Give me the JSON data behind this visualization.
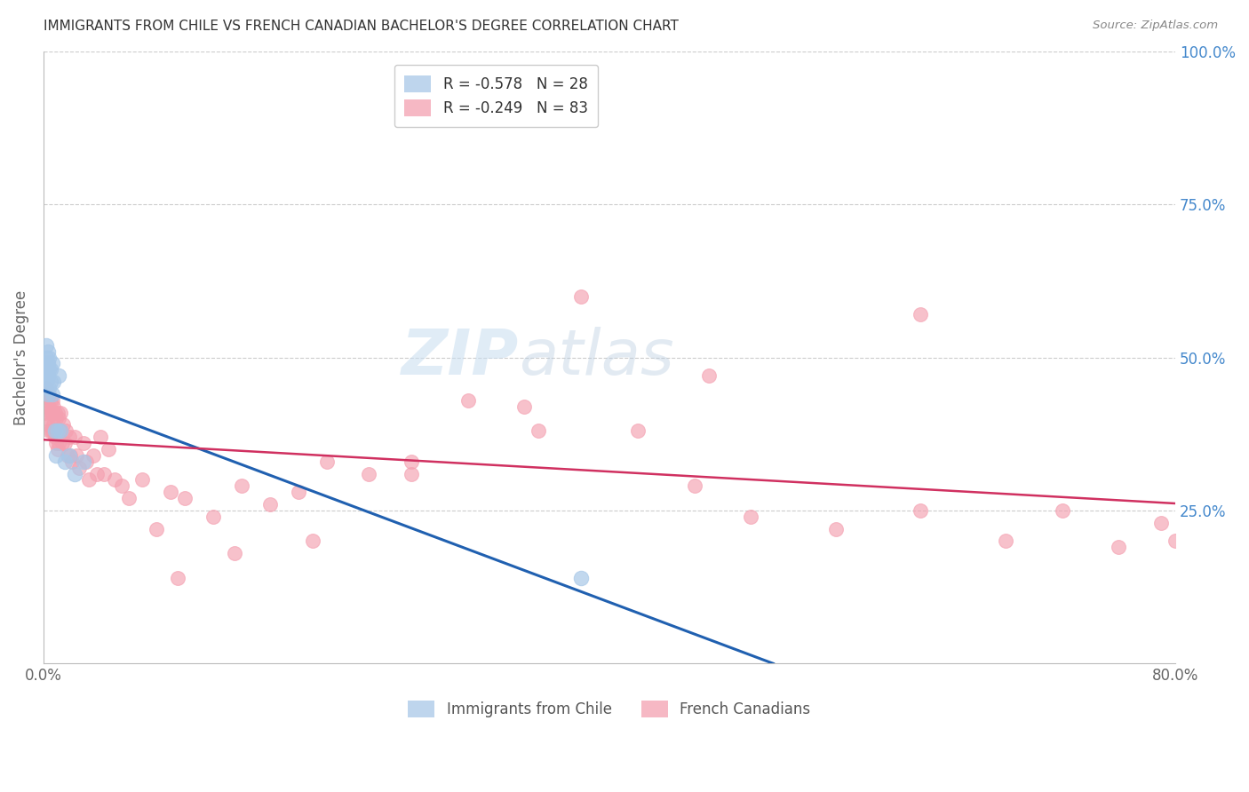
{
  "title": "IMMIGRANTS FROM CHILE VS FRENCH CANADIAN BACHELOR'S DEGREE CORRELATION CHART",
  "source": "Source: ZipAtlas.com",
  "ylabel": "Bachelor's Degree",
  "right_yticks": [
    0.0,
    0.25,
    0.5,
    0.75,
    1.0
  ],
  "right_yticklabels": [
    "",
    "25.0%",
    "50.0%",
    "75.0%",
    "100.0%"
  ],
  "legend_entries": [
    {
      "label": "R = -0.578   N = 28",
      "color": "#a8c8e8"
    },
    {
      "label": "R = -0.249   N = 83",
      "color": "#f4a0b0"
    }
  ],
  "chile_color": "#a8c8e8",
  "french_color": "#f4a0b0",
  "trend_chile_color": "#2060b0",
  "trend_french_color": "#d03060",
  "background_color": "#ffffff",
  "grid_color": "#cccccc",
  "right_tick_color": "#4488cc",
  "watermark_zip": "ZIP",
  "watermark_atlas": "atlas",
  "xlim": [
    0.0,
    0.8
  ],
  "ylim": [
    0.0,
    1.0
  ],
  "xticks": [
    0.0,
    0.8
  ],
  "xticklabels": [
    "0.0%",
    "80.0%"
  ],
  "chile_x": [
    0.001,
    0.001,
    0.002,
    0.002,
    0.002,
    0.002,
    0.003,
    0.003,
    0.003,
    0.003,
    0.004,
    0.004,
    0.004,
    0.005,
    0.005,
    0.006,
    0.006,
    0.007,
    0.008,
    0.009,
    0.01,
    0.011,
    0.012,
    0.015,
    0.018,
    0.022,
    0.028,
    0.38
  ],
  "chile_y": [
    0.49,
    0.47,
    0.52,
    0.5,
    0.48,
    0.46,
    0.51,
    0.49,
    0.47,
    0.44,
    0.5,
    0.48,
    0.45,
    0.48,
    0.46,
    0.49,
    0.44,
    0.46,
    0.38,
    0.34,
    0.38,
    0.47,
    0.38,
    0.33,
    0.34,
    0.31,
    0.33,
    0.14
  ],
  "french_x": [
    0.001,
    0.001,
    0.002,
    0.002,
    0.002,
    0.003,
    0.003,
    0.003,
    0.004,
    0.004,
    0.004,
    0.005,
    0.005,
    0.005,
    0.006,
    0.006,
    0.006,
    0.007,
    0.007,
    0.008,
    0.008,
    0.009,
    0.009,
    0.01,
    0.01,
    0.01,
    0.011,
    0.011,
    0.012,
    0.012,
    0.013,
    0.014,
    0.015,
    0.016,
    0.017,
    0.018,
    0.019,
    0.02,
    0.022,
    0.023,
    0.025,
    0.028,
    0.03,
    0.032,
    0.035,
    0.038,
    0.04,
    0.043,
    0.046,
    0.05,
    0.055,
    0.06,
    0.07,
    0.08,
    0.09,
    0.1,
    0.12,
    0.14,
    0.16,
    0.18,
    0.2,
    0.23,
    0.26,
    0.3,
    0.34,
    0.38,
    0.42,
    0.46,
    0.5,
    0.56,
    0.62,
    0.68,
    0.72,
    0.76,
    0.79,
    0.8,
    0.62,
    0.47,
    0.35,
    0.26,
    0.19,
    0.135,
    0.095
  ],
  "french_y": [
    0.44,
    0.41,
    0.45,
    0.43,
    0.4,
    0.44,
    0.42,
    0.39,
    0.44,
    0.42,
    0.38,
    0.43,
    0.41,
    0.38,
    0.43,
    0.41,
    0.38,
    0.42,
    0.39,
    0.41,
    0.37,
    0.4,
    0.36,
    0.41,
    0.38,
    0.35,
    0.4,
    0.36,
    0.41,
    0.38,
    0.36,
    0.39,
    0.36,
    0.38,
    0.34,
    0.37,
    0.34,
    0.33,
    0.37,
    0.34,
    0.32,
    0.36,
    0.33,
    0.3,
    0.34,
    0.31,
    0.37,
    0.31,
    0.35,
    0.3,
    0.29,
    0.27,
    0.3,
    0.22,
    0.28,
    0.27,
    0.24,
    0.29,
    0.26,
    0.28,
    0.33,
    0.31,
    0.33,
    0.43,
    0.42,
    0.6,
    0.38,
    0.29,
    0.24,
    0.22,
    0.25,
    0.2,
    0.25,
    0.19,
    0.23,
    0.2,
    0.57,
    0.47,
    0.38,
    0.31,
    0.2,
    0.18,
    0.14
  ]
}
